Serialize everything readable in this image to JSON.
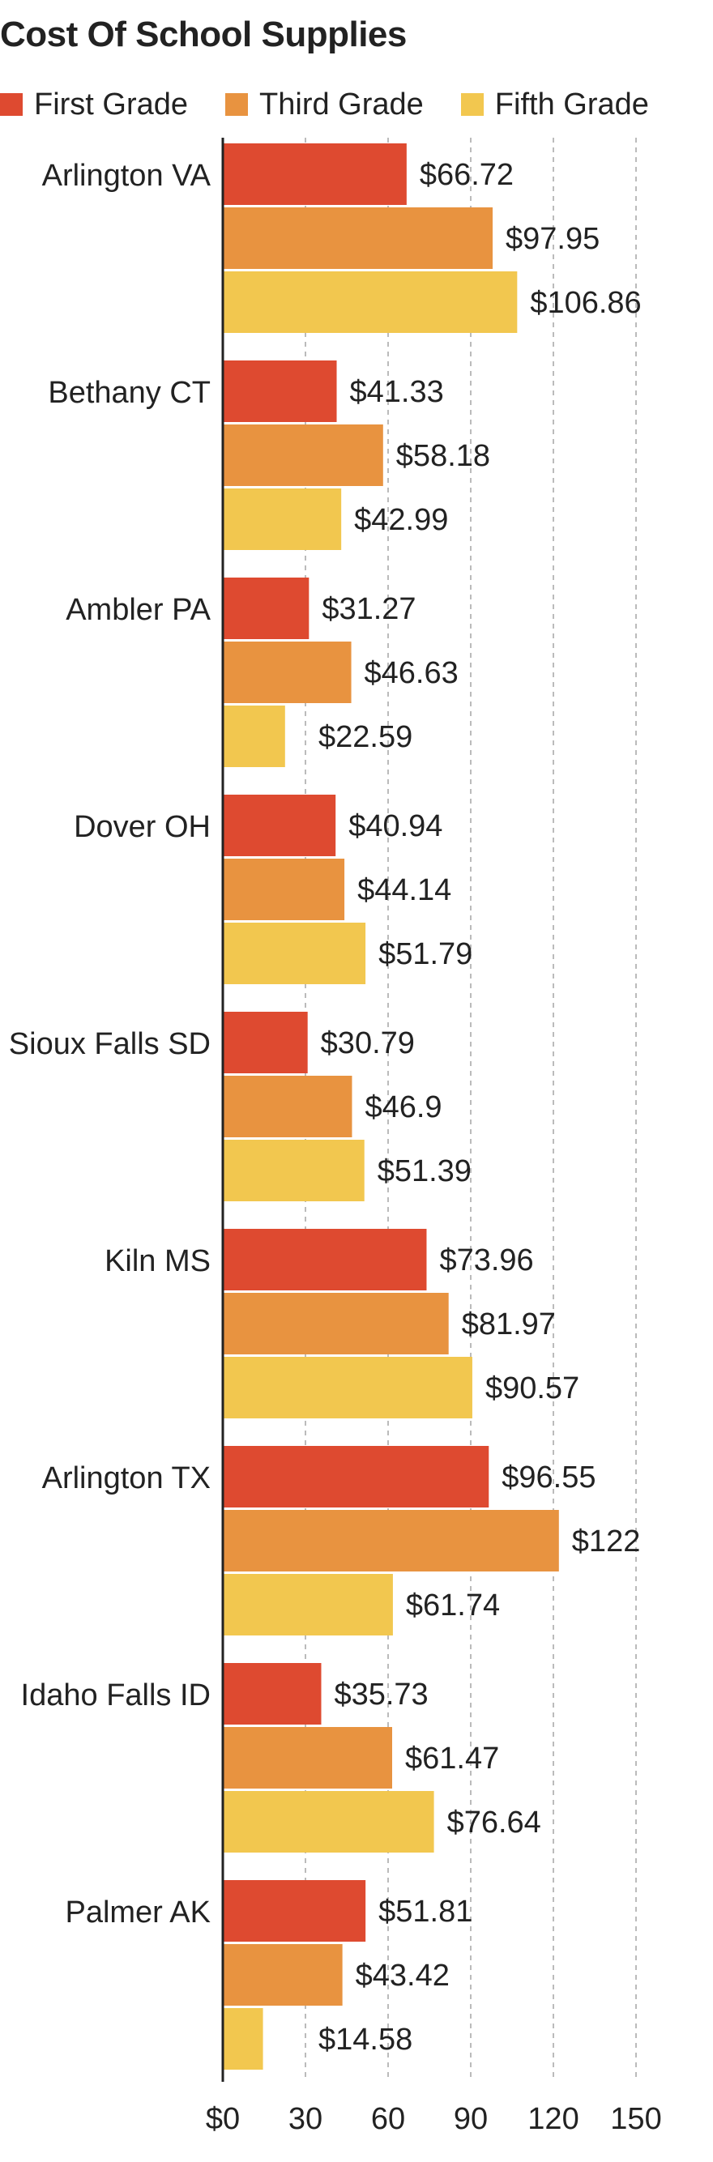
{
  "chart_data": {
    "type": "bar",
    "orientation": "horizontal",
    "title": "Cost Of School Supplies",
    "categories": [
      "Arlington VA",
      "Bethany CT",
      "Ambler PA",
      "Dover OH",
      "Sioux Falls SD",
      "Kiln MS",
      "Arlington TX",
      "Idaho Falls ID",
      "Palmer AK"
    ],
    "series": [
      {
        "name": "First Grade",
        "color": "#de4a30",
        "values": [
          66.72,
          41.33,
          31.27,
          40.94,
          30.79,
          73.96,
          96.55,
          35.73,
          51.81
        ],
        "labels": [
          "$66.72",
          "$41.33",
          "$31.27",
          "$40.94",
          "$30.79",
          "$73.96",
          "$96.55",
          "$35.73",
          "$51.81"
        ]
      },
      {
        "name": "Third Grade",
        "color": "#e89340",
        "values": [
          97.95,
          58.18,
          46.63,
          44.14,
          46.9,
          81.97,
          122,
          61.47,
          43.42
        ],
        "labels": [
          "$97.95",
          "$58.18",
          "$46.63",
          "$44.14",
          "$46.9",
          "$81.97",
          "$122",
          "$61.47",
          "$43.42"
        ]
      },
      {
        "name": "Fifth Grade",
        "color": "#f2c74f",
        "values": [
          106.86,
          42.99,
          22.59,
          51.79,
          51.39,
          90.57,
          61.74,
          76.64,
          14.58
        ],
        "labels": [
          "$106.86",
          "$42.99",
          "$22.59",
          "$51.79",
          "$51.39",
          "$90.57",
          "$61.74",
          "$76.64",
          "$14.58"
        ]
      }
    ],
    "xlim": [
      0,
      150
    ],
    "xticks": [
      0,
      30,
      60,
      90,
      120,
      150
    ],
    "xtick_labels": [
      "$0",
      "30",
      "60",
      "90",
      "120",
      "150"
    ],
    "grid": true,
    "legend_position": "top-left"
  }
}
